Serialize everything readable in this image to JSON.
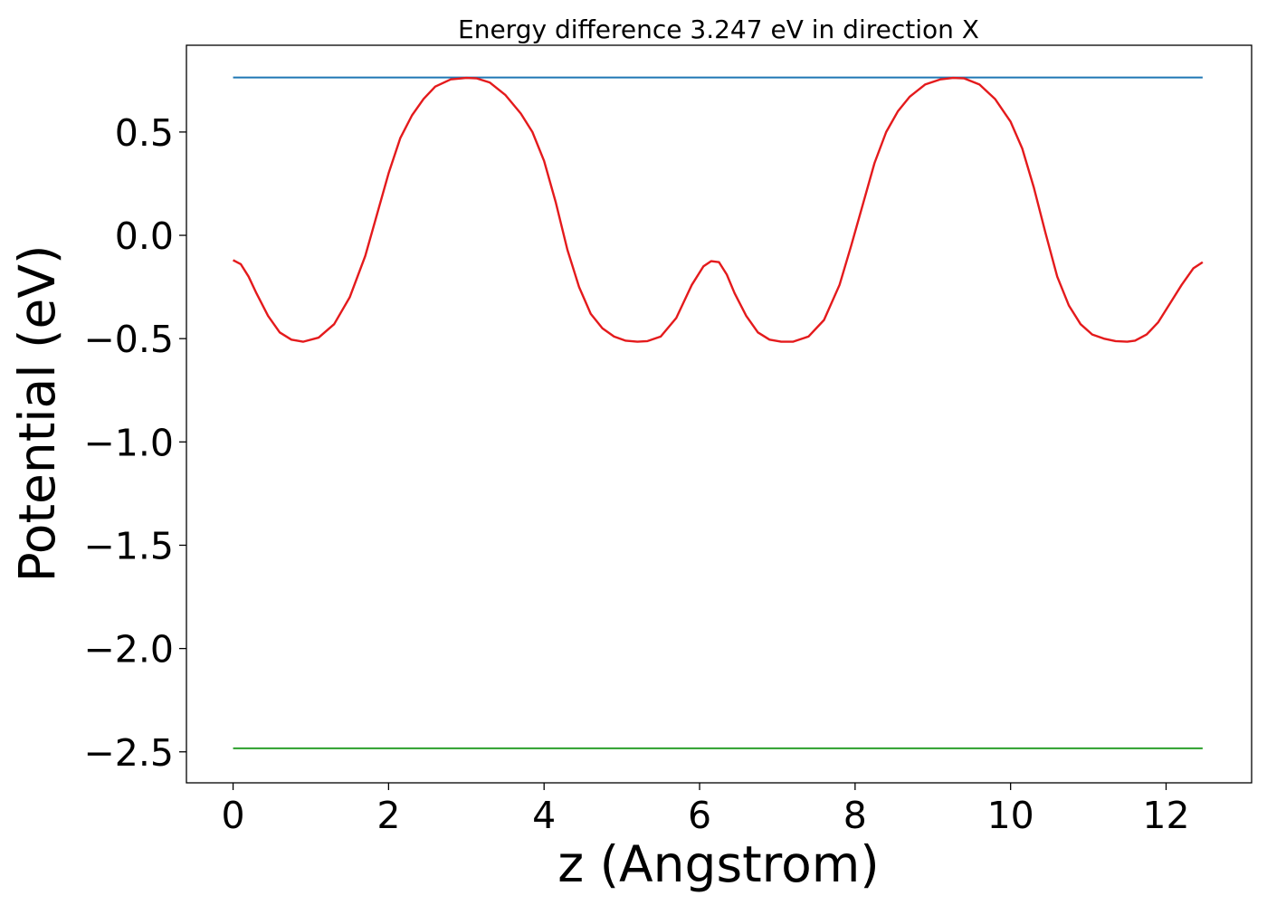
{
  "chart_data": {
    "type": "line",
    "title": "Energy difference 3.247 eV in direction X",
    "xlabel": "z (Angstrom)",
    "ylabel": "Potential (eV)",
    "xlim": [
      -0.6,
      13.1
    ],
    "ylim": [
      -2.65,
      0.92
    ],
    "x_ticks": [
      0,
      2,
      4,
      6,
      8,
      10,
      12
    ],
    "x_tick_labels": [
      "0",
      "2",
      "4",
      "6",
      "8",
      "10",
      "12"
    ],
    "y_ticks": [
      0.5,
      0.0,
      -0.5,
      -1.0,
      -1.5,
      -2.0,
      -2.5
    ],
    "y_tick_labels": [
      "0.5",
      "0.0",
      "−0.5",
      "−1.0",
      "−1.5",
      "−2.0",
      "−2.5"
    ],
    "grid": false,
    "series": [
      {
        "color": "#1f77b4",
        "x": [
          0,
          12.47
        ],
        "y": [
          0.764,
          0.764
        ]
      },
      {
        "color": "#2ca02c",
        "x": [
          0,
          12.47
        ],
        "y": [
          -2.483,
          -2.483
        ]
      },
      {
        "color": "#e41a1c",
        "x": [
          0,
          0.1,
          0.2,
          0.3,
          0.45,
          0.6,
          0.75,
          0.9,
          1.1,
          1.3,
          1.5,
          1.7,
          1.85,
          2.0,
          2.15,
          2.3,
          2.45,
          2.6,
          2.8,
          3.0,
          3.13,
          3.3,
          3.5,
          3.7,
          3.85,
          4.0,
          4.15,
          4.3,
          4.45,
          4.6,
          4.75,
          4.9,
          5.05,
          5.2,
          5.33,
          5.5,
          5.7,
          5.9,
          6.05,
          6.15,
          6.25,
          6.35,
          6.45,
          6.6,
          6.75,
          6.9,
          7.05,
          7.2,
          7.4,
          7.6,
          7.8,
          7.95,
          8.1,
          8.25,
          8.4,
          8.55,
          8.7,
          8.9,
          9.1,
          9.26,
          9.4,
          9.6,
          9.8,
          10.0,
          10.15,
          10.3,
          10.45,
          10.6,
          10.75,
          10.9,
          11.05,
          11.2,
          11.35,
          11.5,
          11.6,
          11.75,
          11.9,
          12.05,
          12.2,
          12.35,
          12.47
        ],
        "y": [
          -0.12,
          -0.14,
          -0.2,
          -0.28,
          -0.39,
          -0.47,
          -0.505,
          -0.515,
          -0.495,
          -0.43,
          -0.3,
          -0.1,
          0.1,
          0.3,
          0.47,
          0.58,
          0.66,
          0.72,
          0.755,
          0.762,
          0.76,
          0.74,
          0.68,
          0.59,
          0.5,
          0.36,
          0.16,
          -0.07,
          -0.25,
          -0.38,
          -0.45,
          -0.49,
          -0.51,
          -0.515,
          -0.512,
          -0.49,
          -0.4,
          -0.24,
          -0.15,
          -0.125,
          -0.13,
          -0.19,
          -0.28,
          -0.39,
          -0.47,
          -0.505,
          -0.515,
          -0.515,
          -0.49,
          -0.41,
          -0.24,
          -0.05,
          0.15,
          0.35,
          0.5,
          0.6,
          0.67,
          0.73,
          0.755,
          0.762,
          0.76,
          0.73,
          0.66,
          0.55,
          0.42,
          0.23,
          0.01,
          -0.2,
          -0.34,
          -0.43,
          -0.48,
          -0.5,
          -0.512,
          -0.515,
          -0.51,
          -0.48,
          -0.42,
          -0.33,
          -0.24,
          -0.16,
          -0.13
        ]
      }
    ]
  }
}
